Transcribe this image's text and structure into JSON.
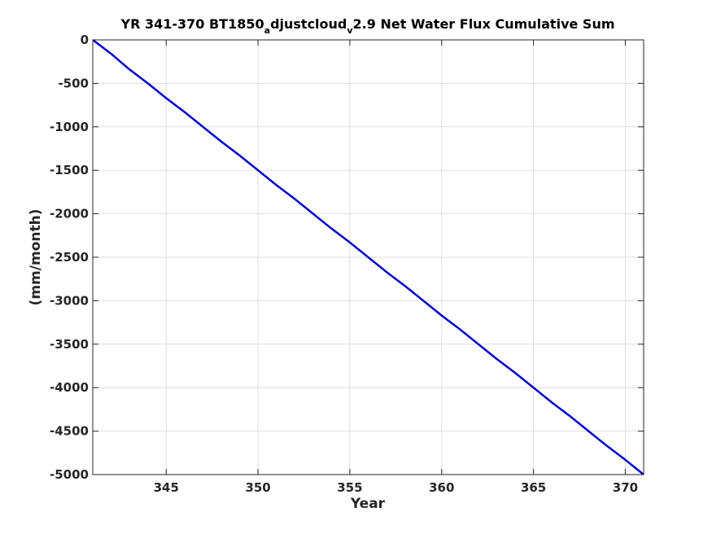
{
  "chart_data": {
    "type": "line",
    "title_parts": [
      "YR 341-370 BT1850",
      "a",
      "djustcloud",
      "v",
      "2.9 Net Water Flux Cumulative Sum"
    ],
    "xlabel": "Year",
    "ylabel": "(mm/month)",
    "xlim": [
      341,
      371
    ],
    "ylim": [
      -5000,
      0
    ],
    "xticks": [
      345,
      350,
      355,
      360,
      365,
      370
    ],
    "xtick_labels": [
      "345",
      "350",
      "355",
      "360",
      "365",
      "370"
    ],
    "yticks": [
      0,
      -500,
      -1000,
      -1500,
      -2000,
      -2500,
      -3000,
      -3500,
      -4000,
      -4500,
      -5000
    ],
    "ytick_labels": [
      "0",
      "-500",
      "-1000",
      "-1500",
      "-2000",
      "-2500",
      "-3000",
      "-3500",
      "-4000",
      "-4500",
      "-5000"
    ],
    "grid": true,
    "series": [
      {
        "color": "#0000cd",
        "x": [
          341,
          342,
          343,
          344,
          345,
          346,
          347,
          348,
          349,
          350,
          351,
          352,
          353,
          354,
          355,
          356,
          357,
          358,
          359,
          360,
          361,
          362,
          363,
          364,
          365,
          366,
          367,
          368,
          369,
          370,
          371
        ],
        "y": [
          0,
          -160,
          -340,
          -500,
          -670,
          -830,
          -1000,
          -1170,
          -1330,
          -1500,
          -1670,
          -1830,
          -2000,
          -2170,
          -2330,
          -2500,
          -2670,
          -2830,
          -3000,
          -3170,
          -3330,
          -3500,
          -3670,
          -3830,
          -4000,
          -4170,
          -4330,
          -4500,
          -4670,
          -4830,
          -5000
        ]
      }
    ]
  }
}
